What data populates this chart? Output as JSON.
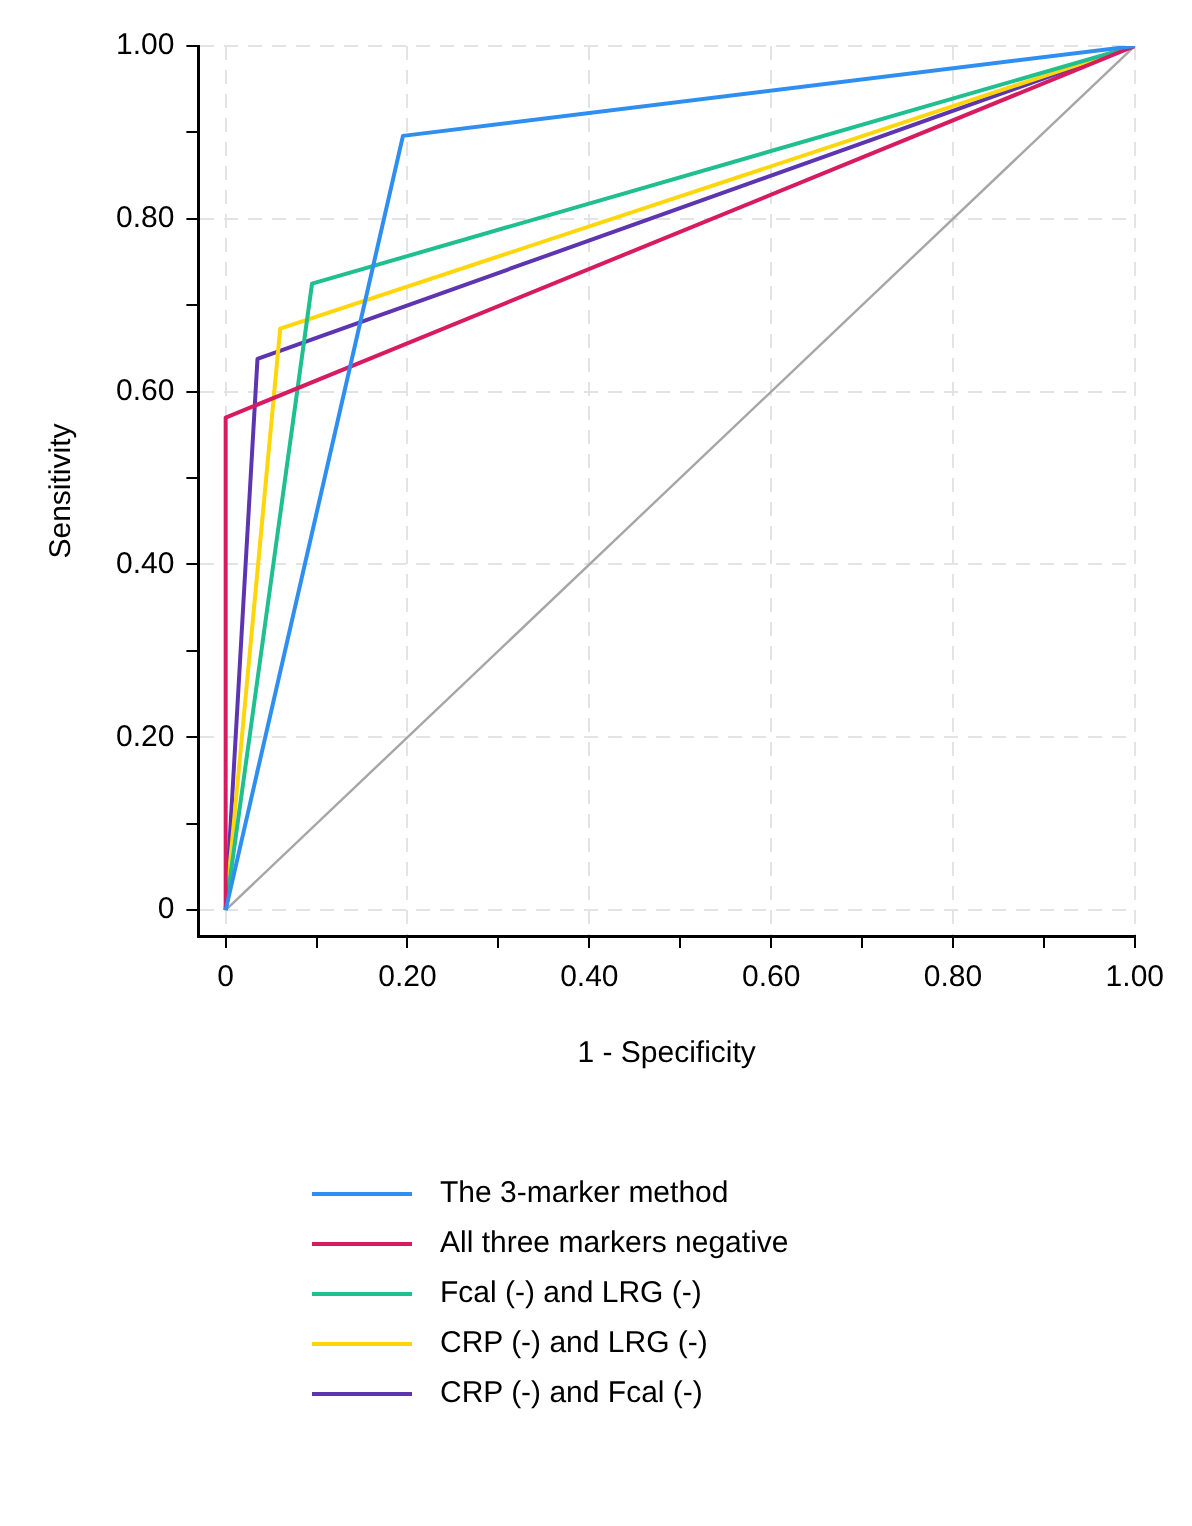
{
  "chart_data": {
    "type": "line",
    "xlabel": "1 - Specificity",
    "ylabel": "Sensitivity",
    "xlim": [
      -0.03,
      1.0
    ],
    "ylim": [
      -0.03,
      1.0
    ],
    "xticks": [
      0,
      {
        "value": 0.1,
        "label": null
      },
      {
        "value": 0.2,
        "label": "0.20"
      },
      {
        "value": 0.3,
        "label": null
      },
      {
        "value": 0.4,
        "label": "0.40"
      },
      {
        "value": 0.5,
        "label": null
      },
      {
        "value": 0.6,
        "label": "0.60"
      },
      {
        "value": 0.7,
        "label": null
      },
      {
        "value": 0.8,
        "label": "0.80"
      },
      {
        "value": 0.9,
        "label": null
      },
      {
        "value": 1,
        "label": "1.00"
      }
    ],
    "yticks": [
      0,
      {
        "value": 0.1,
        "label": null
      },
      {
        "value": 0.2,
        "label": "0.20"
      },
      {
        "value": 0.3,
        "label": null
      },
      {
        "value": 0.4,
        "label": "0.40"
      },
      {
        "value": 0.5,
        "label": null
      },
      {
        "value": 0.6,
        "label": "0.60"
      },
      {
        "value": 0.7,
        "label": null
      },
      {
        "value": 0.8,
        "label": "0.80"
      },
      {
        "value": 0.9,
        "label": null
      },
      {
        "value": 1,
        "label": "1.00"
      }
    ],
    "grid": true,
    "legend": "bottom",
    "marker": "none",
    "line_style": "solid",
    "series": [
      {
        "name": "The 3-marker method",
        "color": "#2f8ff0",
        "x": [
          0,
          0.195,
          1
        ],
        "values": [
          0,
          0.896,
          1
        ]
      },
      {
        "name": "All three markers negative",
        "color": "#d81b60",
        "x": [
          0,
          0,
          1
        ],
        "values": [
          0,
          0.57,
          1
        ]
      },
      {
        "name": "Fcal (-) and LRG (-)",
        "color": "#1fbf8f",
        "x": [
          0,
          0.095,
          1
        ],
        "values": [
          0,
          0.725,
          1
        ]
      },
      {
        "name": "CRP (-) and LRG (-)",
        "color": "#ffd60a",
        "x": [
          0,
          0.06,
          1
        ],
        "values": [
          0,
          0.673,
          1
        ]
      },
      {
        "name": "CRP (-) and Fcal (-)",
        "color": "#5e35b1",
        "x": [
          0,
          0.035,
          1
        ],
        "values": [
          0,
          0.638,
          1
        ]
      },
      {
        "color": "#a6a6a6",
        "x": [
          0,
          1
        ],
        "values": [
          0,
          1
        ]
      }
    ]
  }
}
